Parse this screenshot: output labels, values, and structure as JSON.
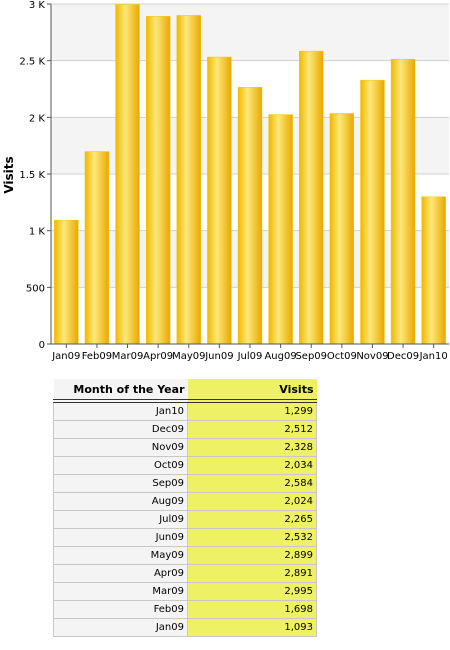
{
  "chart_data": {
    "type": "bar",
    "ylabel": "Visits",
    "categories": [
      "Jan09",
      "Feb09",
      "Mar09",
      "Apr09",
      "May09",
      "Jun09",
      "Jul09",
      "Aug09",
      "Sep09",
      "Oct09",
      "Nov09",
      "Dec09",
      "Jan10"
    ],
    "values": [
      1093,
      1698,
      2995,
      2891,
      2899,
      2532,
      2265,
      2024,
      2584,
      2034,
      2328,
      2512,
      1299
    ],
    "ylim": [
      0,
      3000
    ],
    "yticks": [
      0,
      500,
      1000,
      1500,
      2000,
      2500,
      3000
    ],
    "ytick_labels": [
      "0",
      "500",
      "1 K",
      "1.5 K",
      "2 K",
      "2.5 K",
      "3 K"
    ],
    "grid": true,
    "bar_color": "#f5c400"
  },
  "table": {
    "headers": {
      "month": "Month of the Year",
      "visits": "Visits"
    },
    "rows": [
      {
        "month": "Jan10",
        "visits": "1,299"
      },
      {
        "month": "Dec09",
        "visits": "2,512"
      },
      {
        "month": "Nov09",
        "visits": "2,328"
      },
      {
        "month": "Oct09",
        "visits": "2,034"
      },
      {
        "month": "Sep09",
        "visits": "2,584"
      },
      {
        "month": "Aug09",
        "visits": "2,024"
      },
      {
        "month": "Jul09",
        "visits": "2,265"
      },
      {
        "month": "Jun09",
        "visits": "2,532"
      },
      {
        "month": "May09",
        "visits": "2,899"
      },
      {
        "month": "Apr09",
        "visits": "2,891"
      },
      {
        "month": "Mar09",
        "visits": "2,995"
      },
      {
        "month": "Feb09",
        "visits": "1,698"
      },
      {
        "month": "Jan09",
        "visits": "1,093"
      }
    ]
  }
}
